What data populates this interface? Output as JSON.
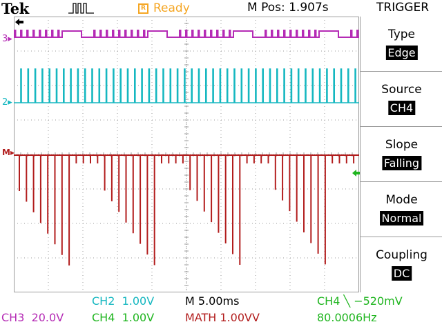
{
  "header": {
    "brand": "Tek",
    "status_box_glyph": "R",
    "status": "Ready",
    "horizontal_position": "M Pos: 1.907s"
  },
  "menu": {
    "title": "TRIGGER",
    "items": [
      {
        "label": "Type",
        "value": "Edge"
      },
      {
        "label": "Source",
        "value": "CH4"
      },
      {
        "label": "Slope",
        "value": "Falling"
      },
      {
        "label": "Mode",
        "value": "Normal"
      },
      {
        "label": "Coupling",
        "value": "DC"
      }
    ]
  },
  "markers": {
    "ch3": "3",
    "ch2": "2",
    "ch4_math": "M"
  },
  "readouts": {
    "ch2": {
      "label": "CH2",
      "scale": "1.00V"
    },
    "timebase": "M 5.00ms",
    "trigger": {
      "source": "CH4",
      "slope_glyph": "╲",
      "level": "−520mV"
    },
    "ch3": {
      "label": "CH3",
      "scale": "20.0V"
    },
    "ch4": {
      "label": "CH4",
      "scale": "1.00V"
    },
    "math": {
      "label": "MATH",
      "scale": "1.00VV"
    },
    "frequency": "80.0006Hz"
  },
  "colors": {
    "ch2": "#15b7c0",
    "ch3": "#b52bb5",
    "ch4": "#1fb51f",
    "math": "#b21d1d",
    "status": "#f5a623",
    "graticule": "#9a9a9a"
  },
  "icons": {
    "acquisition": "pulse-waveform-icon",
    "trigger_position": "trigger-position-arrow-icon",
    "trigger_level": "trigger-level-arrow-icon"
  }
}
